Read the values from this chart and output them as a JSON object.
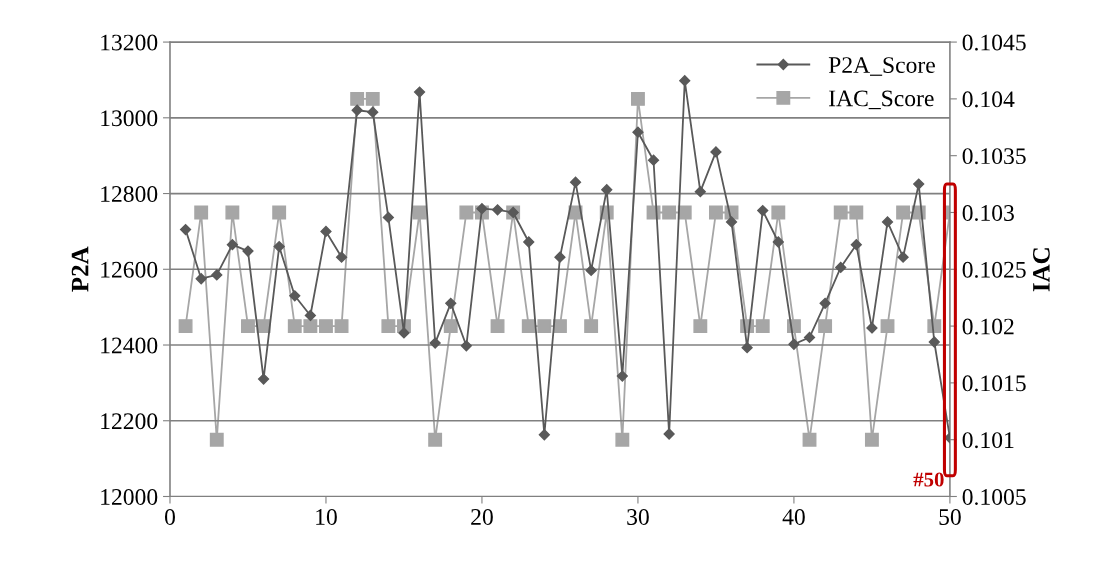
{
  "chart_data": {
    "type": "line",
    "ylabel": "P2A",
    "y2label": "IAC",
    "x": [
      1,
      2,
      3,
      4,
      5,
      6,
      7,
      8,
      9,
      10,
      11,
      12,
      13,
      14,
      15,
      16,
      17,
      18,
      19,
      20,
      21,
      22,
      23,
      24,
      25,
      26,
      27,
      28,
      29,
      30,
      31,
      32,
      33,
      34,
      35,
      36,
      37,
      38,
      39,
      40,
      41,
      42,
      43,
      44,
      45,
      46,
      47,
      48,
      49,
      50
    ],
    "series": [
      {
        "name": "P2A_Score",
        "color": "#595959",
        "marker": "diamond",
        "values": [
          12705,
          12575,
          12585,
          12665,
          12648,
          12310,
          12660,
          12530,
          12478,
          12700,
          12632,
          13020,
          13015,
          12737,
          12432,
          13068,
          12405,
          12510,
          12398,
          12760,
          12757,
          12750,
          12672,
          12163,
          12632,
          12830,
          12597,
          12810,
          12318,
          12962,
          12888,
          12165,
          13098,
          12805,
          12910,
          12725,
          12393,
          12755,
          12672,
          12402,
          12420,
          12510,
          12605,
          12665,
          12445,
          12725,
          12632,
          12825,
          12408,
          12155
        ]
      },
      {
        "name": "IAC_Score",
        "color": "#a6a6a6",
        "marker": "square",
        "axis": "y2",
        "values": [
          0.102,
          0.103,
          0.101,
          0.103,
          0.102,
          0.102,
          0.103,
          0.102,
          0.102,
          0.102,
          0.102,
          0.104,
          0.104,
          0.102,
          0.102,
          0.103,
          0.101,
          0.102,
          0.103,
          0.103,
          0.102,
          0.103,
          0.102,
          0.102,
          0.102,
          0.103,
          0.102,
          0.103,
          0.101,
          0.104,
          0.103,
          0.103,
          0.103,
          0.102,
          0.103,
          0.103,
          0.102,
          0.102,
          0.103,
          0.102,
          0.101,
          0.102,
          0.103,
          0.103,
          0.101,
          0.102,
          0.103,
          0.103,
          0.102,
          0.103
        ]
      }
    ],
    "xlim": [
      0,
      50
    ],
    "xticks": [
      0,
      10,
      20,
      30,
      40,
      50
    ],
    "ylim": [
      12000,
      13200
    ],
    "yticks": [
      12000,
      12200,
      12400,
      12600,
      12800,
      13000,
      13200
    ],
    "y2lim": [
      0.1005,
      0.1045
    ],
    "y2ticks": [
      0.1005,
      0.101,
      0.1015,
      0.102,
      0.1025,
      0.103,
      0.1035,
      0.104,
      0.1045
    ],
    "grid": "y",
    "legend": "top right",
    "annotations": [
      {
        "text": "#50",
        "x": 50,
        "y": 12155
      }
    ]
  }
}
